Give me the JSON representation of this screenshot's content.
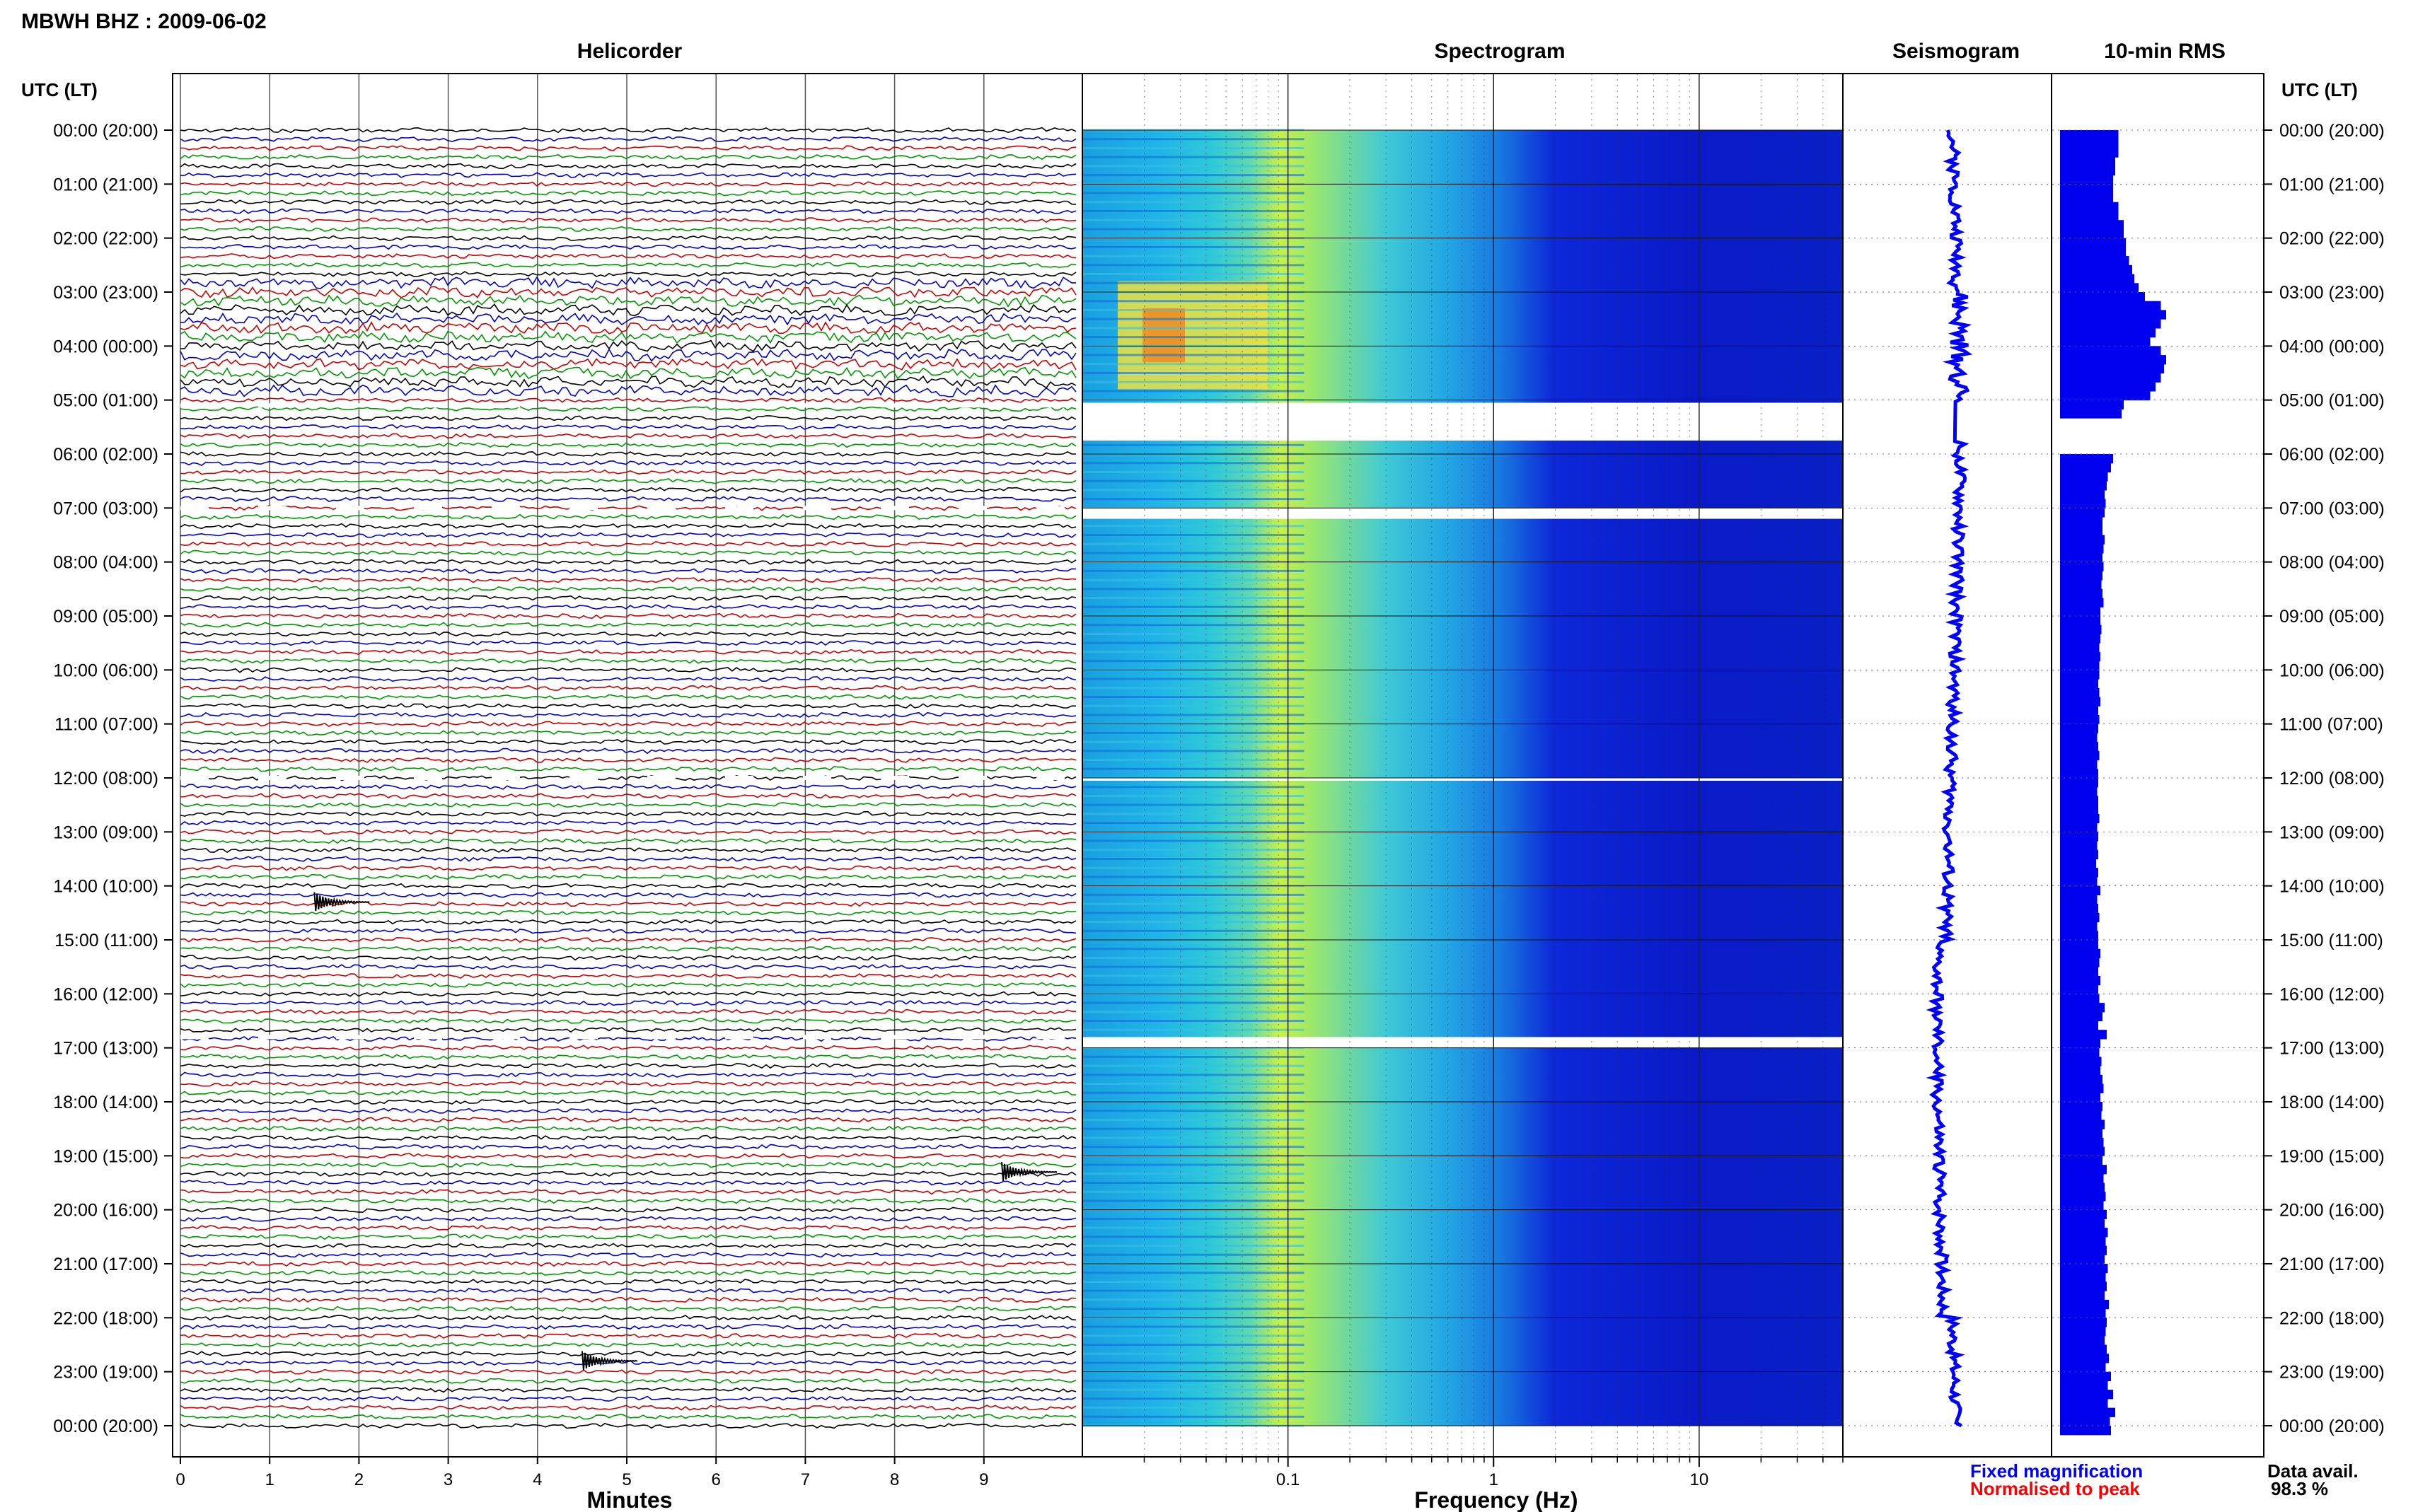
{
  "header": {
    "station_title": "MBWH BHZ : 2009-06-02",
    "time_label_left": "UTC (LT)",
    "time_label_right": "UTC (LT)"
  },
  "panels": {
    "helicorder": "Helicorder",
    "spectrogram": "Spectrogram",
    "seismogram": "Seismogram",
    "rms": "10-min RMS"
  },
  "axes": {
    "minutes_label": "Minutes",
    "minutes_ticks": [
      "0",
      "1",
      "2",
      "3",
      "4",
      "5",
      "6",
      "7",
      "8",
      "9"
    ],
    "frequency_label": "Frequency (Hz)",
    "frequency_ticks": [
      "0.1",
      "1",
      "10"
    ]
  },
  "hour_labels": [
    "00:00 (20:00)",
    "01:00 (21:00)",
    "02:00 (22:00)",
    "03:00 (23:00)",
    "04:00 (00:00)",
    "05:00 (01:00)",
    "06:00 (02:00)",
    "07:00 (03:00)",
    "08:00 (04:00)",
    "09:00 (05:00)",
    "10:00 (06:00)",
    "11:00 (07:00)",
    "12:00 (08:00)",
    "13:00 (09:00)",
    "14:00 (10:00)",
    "15:00 (11:00)",
    "16:00 (12:00)",
    "17:00 (13:00)",
    "18:00 (14:00)",
    "19:00 (15:00)",
    "20:00 (16:00)",
    "21:00 (17:00)",
    "22:00 (18:00)",
    "23:00 (19:00)",
    "00:00 (20:00)"
  ],
  "legend": {
    "fixed": "Fixed magnification",
    "normalised": "Normalised to peak",
    "fixed_color": "#0000ff",
    "normalised_color": "#ff0000"
  },
  "availability": {
    "label": "Data avail.",
    "value": "98.3 %"
  },
  "colors": {
    "trace_cycle": [
      "#000000",
      "#0000cc",
      "#cc0000",
      "#009900"
    ],
    "rms_bar": "#0000ee",
    "seismogram": "#0000ff"
  },
  "chart_data": [
    {
      "type": "line",
      "title": "Helicorder",
      "xlabel": "Minutes",
      "x_range": [
        0,
        10
      ],
      "traces_per_hour": 6,
      "rows": 145,
      "gaps_hours": [
        5.1,
        7.0,
        12.0,
        16.8
      ],
      "events": [
        {
          "hour": 14.3,
          "minute": 1.5
        },
        {
          "hour": 19.3,
          "minute": 9.2
        },
        {
          "hour": 22.8,
          "minute": 4.5
        }
      ]
    },
    {
      "type": "heatmap",
      "title": "Spectrogram",
      "xlabel": "Frequency (Hz)",
      "x_scale": "log",
      "x_range": [
        0.01,
        50
      ],
      "y_range_hours": [
        0,
        24
      ],
      "gaps_hours": [
        [
          5.05,
          5.75
        ],
        [
          7.0,
          7.2
        ],
        [
          12.0,
          12.05
        ],
        [
          16.8,
          17.0
        ]
      ],
      "microseism_peak_hz": 0.22,
      "low_freq_energy_hours": [
        2.8,
        4.8
      ]
    },
    {
      "type": "line",
      "title": "Seismogram",
      "gaps_hours": [
        [
          5.05,
          5.75
        ]
      ]
    },
    {
      "type": "bar",
      "title": "10-min RMS",
      "bins_per_hour": 6,
      "values_relative": [
        0.55,
        0.55,
        0.55,
        0.52,
        0.52,
        0.5,
        0.5,
        0.5,
        0.55,
        0.55,
        0.6,
        0.6,
        0.62,
        0.62,
        0.65,
        0.68,
        0.7,
        0.74,
        0.8,
        0.95,
        1.0,
        0.95,
        0.9,
        0.85,
        0.95,
        1.0,
        0.98,
        0.95,
        0.9,
        0.85,
        0.6,
        0.58,
        0.0,
        0.0,
        0.0,
        0.0,
        0.5,
        0.48,
        0.45,
        0.44,
        0.42,
        0.43,
        0.42,
        0.4,
        0.4,
        0.42,
        0.41,
        0.4,
        0.41,
        0.4,
        0.39,
        0.4,
        0.41,
        0.38,
        0.38,
        0.39,
        0.38,
        0.37,
        0.38,
        0.37,
        0.37,
        0.36,
        0.37,
        0.38,
        0.36,
        0.37,
        0.36,
        0.35,
        0.36,
        0.37,
        0.35,
        0.36,
        0.36,
        0.35,
        0.36,
        0.36,
        0.37,
        0.35,
        0.36,
        0.35,
        0.36,
        0.34,
        0.36,
        0.35,
        0.38,
        0.35,
        0.36,
        0.37,
        0.35,
        0.36,
        0.36,
        0.38,
        0.37,
        0.36,
        0.38,
        0.36,
        0.37,
        0.42,
        0.4,
        0.36,
        0.44,
        0.38,
        0.37,
        0.39,
        0.38,
        0.4,
        0.41,
        0.38,
        0.4,
        0.39,
        0.42,
        0.4,
        0.41,
        0.42,
        0.4,
        0.44,
        0.41,
        0.42,
        0.43,
        0.41,
        0.44,
        0.42,
        0.45,
        0.43,
        0.44,
        0.42,
        0.45,
        0.43,
        0.44,
        0.42,
        0.46,
        0.43,
        0.44,
        0.43,
        0.42,
        0.44,
        0.46,
        0.43,
        0.48,
        0.45,
        0.5,
        0.45,
        0.52,
        0.47,
        0.48
      ]
    }
  ]
}
